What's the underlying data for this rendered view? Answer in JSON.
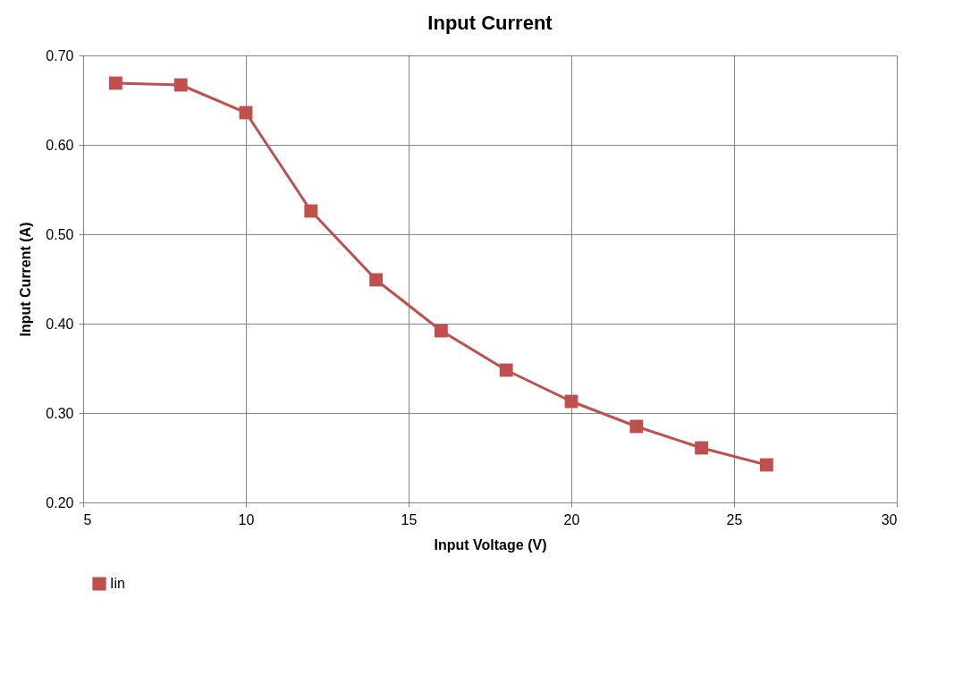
{
  "chart_data": {
    "type": "line",
    "title": "Input Current",
    "xlabel": "Input Voltage (V)",
    "ylabel": "Input Current (A)",
    "x": [
      6,
      8,
      10,
      12,
      14,
      16,
      18,
      20,
      22,
      24,
      26
    ],
    "series": [
      {
        "name": "Iin",
        "color": "#c0504d",
        "values": [
          0.669,
          0.667,
          0.636,
          0.526,
          0.449,
          0.392,
          0.348,
          0.313,
          0.285,
          0.261,
          0.242
        ]
      }
    ],
    "xlim": [
      5,
      30
    ],
    "xticks": [
      5,
      10,
      15,
      20,
      25,
      30
    ],
    "ylim": [
      0.2,
      0.7
    ],
    "yticks": [
      {
        "value": 0.2,
        "label": "0.20"
      },
      {
        "value": 0.3,
        "label": "0.30"
      },
      {
        "value": 0.4,
        "label": "0.40"
      },
      {
        "value": 0.5,
        "label": "0.50"
      },
      {
        "value": 0.6,
        "label": "0.60"
      },
      {
        "value": 0.7,
        "label": "0.70"
      }
    ],
    "grid": true,
    "legend": "bottom",
    "marker": "square",
    "line_style": "solid"
  }
}
